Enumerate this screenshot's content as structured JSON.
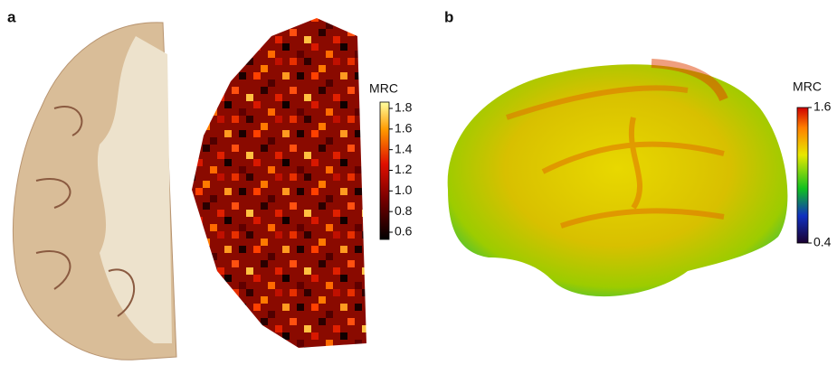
{
  "panels": [
    {
      "label": "a",
      "colorbar": {
        "title": "MRC",
        "ticks": [
          "1.8",
          "1.6",
          "1.4",
          "1.2",
          "1.0",
          "0.8",
          "0.6"
        ]
      }
    },
    {
      "label": "b",
      "colorbar": {
        "title": "MRC",
        "ticks": [
          "1.6",
          "0.4"
        ]
      }
    }
  ]
}
